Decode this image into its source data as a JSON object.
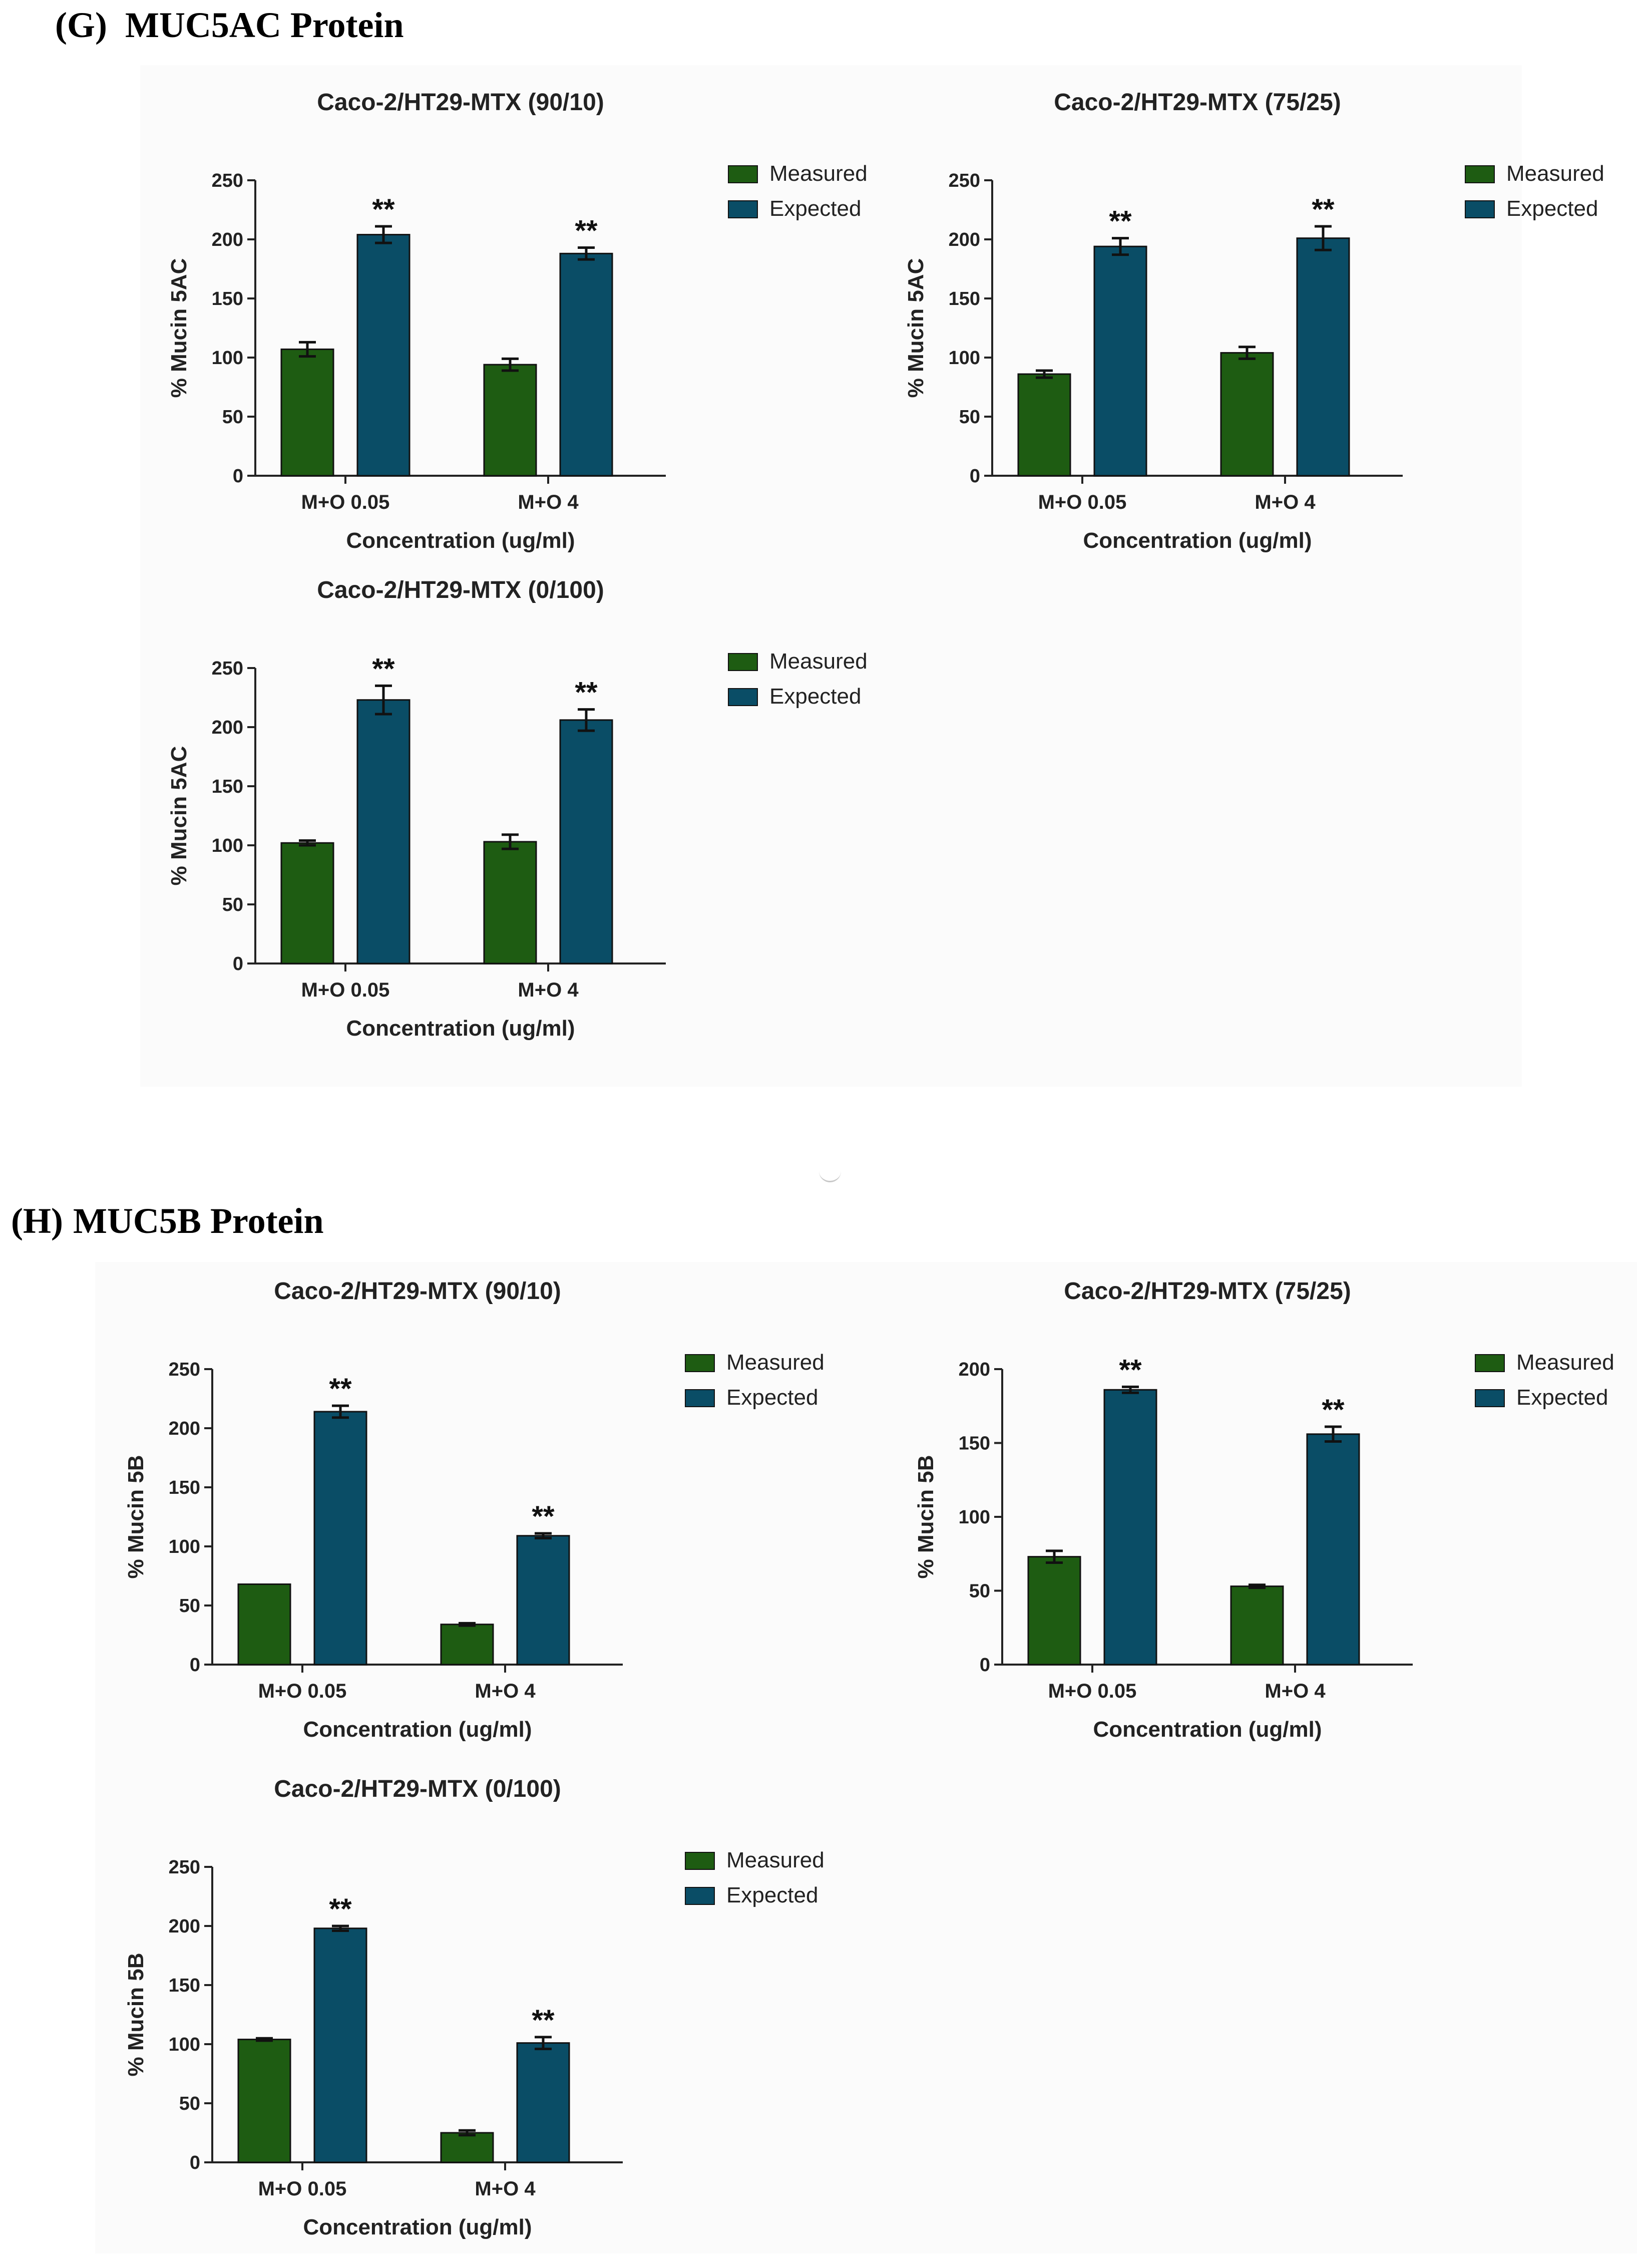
{
  "sections": [
    {
      "letter": "(G)",
      "name": "MUC5AC Protein",
      "ylabel": "% Mucin 5AC",
      "panels": [
        {
          "title": "Caco-2/HT29-MTX (90/10)",
          "ylim": [
            0,
            250
          ],
          "yticks": [
            0,
            50,
            100,
            150,
            200,
            250
          ],
          "xlabel": "Concentration (ug/ml)",
          "categories": [
            "M+O 0.05",
            "M+O 4"
          ],
          "series": [
            {
              "name": "Measured",
              "values": [
                107,
                94
              ],
              "errors": [
                6,
                5
              ]
            },
            {
              "name": "Expected",
              "values": [
                204,
                188
              ],
              "errors": [
                7,
                5
              ]
            }
          ],
          "significance": [
            "**",
            "**"
          ]
        },
        {
          "title": "Caco-2/HT29-MTX (75/25)",
          "ylim": [
            0,
            250
          ],
          "yticks": [
            0,
            50,
            100,
            150,
            200,
            250
          ],
          "xlabel": "Concentration (ug/ml)",
          "categories": [
            "M+O 0.05",
            "M+O 4"
          ],
          "series": [
            {
              "name": "Measured",
              "values": [
                86,
                104
              ],
              "errors": [
                3,
                5
              ]
            },
            {
              "name": "Expected",
              "values": [
                194,
                201
              ],
              "errors": [
                7,
                10
              ]
            }
          ],
          "significance": [
            "**",
            "**"
          ]
        },
        {
          "title": "Caco-2/HT29-MTX (0/100)",
          "ylim": [
            0,
            250
          ],
          "yticks": [
            0,
            50,
            100,
            150,
            200,
            250
          ],
          "xlabel": "Concentration (ug/ml)",
          "categories": [
            "M+O 0.05",
            "M+O 4"
          ],
          "series": [
            {
              "name": "Measured",
              "values": [
                102,
                103
              ],
              "errors": [
                2,
                6
              ]
            },
            {
              "name": "Expected",
              "values": [
                223,
                206
              ],
              "errors": [
                12,
                9
              ]
            }
          ],
          "significance": [
            "**",
            "**"
          ]
        }
      ]
    },
    {
      "letter": "(H)",
      "name": "MUC5B Protein",
      "ylabel": "% Mucin 5B",
      "panels": [
        {
          "title": "Caco-2/HT29-MTX (90/10)",
          "ylim": [
            0,
            250
          ],
          "yticks": [
            0,
            50,
            100,
            150,
            200,
            250
          ],
          "xlabel": "Concentration (ug/ml)",
          "categories": [
            "M+O 0.05",
            "M+O 4"
          ],
          "series": [
            {
              "name": "Measured",
              "values": [
                68,
                34
              ],
              "errors": [
                0,
                1
              ]
            },
            {
              "name": "Expected",
              "values": [
                214,
                109
              ],
              "errors": [
                5,
                2
              ]
            }
          ],
          "significance": [
            "**",
            "**"
          ]
        },
        {
          "title": "Caco-2/HT29-MTX (75/25)",
          "ylim": [
            0,
            200
          ],
          "yticks": [
            0,
            50,
            100,
            150,
            200
          ],
          "xlabel": "Concentration (ug/ml)",
          "categories": [
            "M+O 0.05",
            "M+O 4"
          ],
          "series": [
            {
              "name": "Measured",
              "values": [
                73,
                53
              ],
              "errors": [
                4,
                1
              ]
            },
            {
              "name": "Expected",
              "values": [
                186,
                156
              ],
              "errors": [
                2,
                5
              ]
            }
          ],
          "significance": [
            "**",
            "**"
          ]
        },
        {
          "title": "Caco-2/HT29-MTX (0/100)",
          "ylim": [
            0,
            250
          ],
          "yticks": [
            0,
            50,
            100,
            150,
            200,
            250
          ],
          "xlabel": "Concentration (ug/ml)",
          "categories": [
            "M+O 0.05",
            "M+O 4"
          ],
          "series": [
            {
              "name": "Measured",
              "values": [
                104,
                25
              ],
              "errors": [
                1,
                2
              ]
            },
            {
              "name": "Expected",
              "values": [
                198,
                101
              ],
              "errors": [
                2,
                5
              ]
            }
          ],
          "significance": [
            "**",
            "**"
          ]
        }
      ]
    }
  ],
  "colors": {
    "measured": "#1e5c12",
    "expected": "#0a4d66"
  },
  "chart_data": [
    {
      "type": "bar",
      "title": "Caco-2/HT29-MTX (90/10)",
      "group": "MUC5AC Protein",
      "xlabel": "Concentration (ug/ml)",
      "ylabel": "% Mucin 5AC",
      "ylim": [
        0,
        250
      ],
      "categories": [
        "M+O 0.05",
        "M+O 4"
      ],
      "series": [
        {
          "name": "Measured",
          "values": [
            107,
            94
          ]
        },
        {
          "name": "Expected",
          "values": [
            204,
            188
          ]
        }
      ]
    },
    {
      "type": "bar",
      "title": "Caco-2/HT29-MTX (75/25)",
      "group": "MUC5AC Protein",
      "xlabel": "Concentration (ug/ml)",
      "ylabel": "% Mucin 5AC",
      "ylim": [
        0,
        250
      ],
      "categories": [
        "M+O 0.05",
        "M+O 4"
      ],
      "series": [
        {
          "name": "Measured",
          "values": [
            86,
            104
          ]
        },
        {
          "name": "Expected",
          "values": [
            194,
            201
          ]
        }
      ]
    },
    {
      "type": "bar",
      "title": "Caco-2/HT29-MTX (0/100)",
      "group": "MUC5AC Protein",
      "xlabel": "Concentration (ug/ml)",
      "ylabel": "% Mucin 5AC",
      "ylim": [
        0,
        250
      ],
      "categories": [
        "M+O 0.05",
        "M+O 4"
      ],
      "series": [
        {
          "name": "Measured",
          "values": [
            102,
            103
          ]
        },
        {
          "name": "Expected",
          "values": [
            223,
            206
          ]
        }
      ]
    },
    {
      "type": "bar",
      "title": "Caco-2/HT29-MTX (90/10)",
      "group": "MUC5B Protein",
      "xlabel": "Concentration (ug/ml)",
      "ylabel": "% Mucin 5B",
      "ylim": [
        0,
        250
      ],
      "categories": [
        "M+O 0.05",
        "M+O 4"
      ],
      "series": [
        {
          "name": "Measured",
          "values": [
            68,
            34
          ]
        },
        {
          "name": "Expected",
          "values": [
            214,
            109
          ]
        }
      ]
    },
    {
      "type": "bar",
      "title": "Caco-2/HT29-MTX (75/25)",
      "group": "MUC5B Protein",
      "xlabel": "Concentration (ug/ml)",
      "ylabel": "% Mucin 5B",
      "ylim": [
        0,
        200
      ],
      "categories": [
        "M+O 0.05",
        "M+O 4"
      ],
      "series": [
        {
          "name": "Measured",
          "values": [
            73,
            53
          ]
        },
        {
          "name": "Expected",
          "values": [
            186,
            156
          ]
        }
      ]
    },
    {
      "type": "bar",
      "title": "Caco-2/HT29-MTX (0/100)",
      "group": "MUC5B Protein",
      "xlabel": "Concentration (ug/ml)",
      "ylabel": "% Mucin 5B",
      "ylim": [
        0,
        250
      ],
      "categories": [
        "M+O 0.05",
        "M+O 4"
      ],
      "series": [
        {
          "name": "Measured",
          "values": [
            104,
            25
          ]
        },
        {
          "name": "Expected",
          "values": [
            198,
            101
          ]
        }
      ]
    }
  ]
}
